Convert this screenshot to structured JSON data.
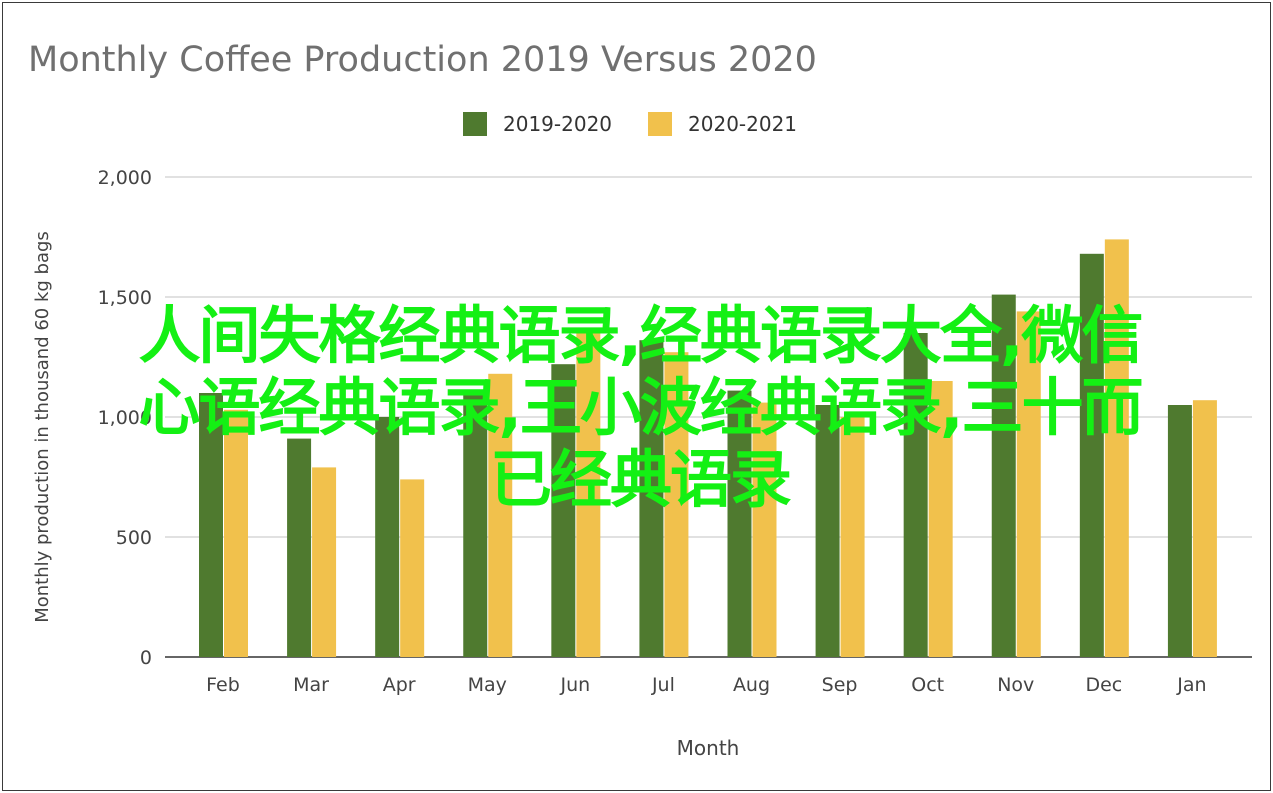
{
  "chart_data": {
    "type": "bar",
    "title": "Monthly Coffee Production 2019 Versus 2020",
    "xlabel": "Month",
    "ylabel": "Monthly production in thousand 60 kg bags",
    "ylim": [
      0,
      2000
    ],
    "yticks": [
      0,
      500,
      1000,
      1500,
      2000
    ],
    "ytick_labels": [
      "0",
      "500",
      "1,000",
      "1,500",
      "2,000"
    ],
    "grid": true,
    "legend_position": "top",
    "categories": [
      "Feb",
      "Mar",
      "Apr",
      "May",
      "Jun",
      "Jul",
      "Aug",
      "Sep",
      "Oct",
      "Nov",
      "Dec",
      "Jan"
    ],
    "series": [
      {
        "name": "2019-2020",
        "color": "#4f7a2f",
        "values": [
          1100,
          910,
          1000,
          1100,
          1220,
          1320,
          1110,
          1050,
          1350,
          1510,
          1680,
          1050
        ]
      },
      {
        "name": "2020-2021",
        "color": "#f1c14c",
        "values": [
          1030,
          790,
          740,
          1180,
          1350,
          1270,
          1060,
          1000,
          1150,
          1440,
          1740,
          1070
        ]
      }
    ]
  },
  "overlay_text": {
    "line1": "人间失格经典语录,经典语录大全,微信",
    "line2": "心语经典语录,王小波经典语录,三十而",
    "line3": "已经典语录"
  }
}
